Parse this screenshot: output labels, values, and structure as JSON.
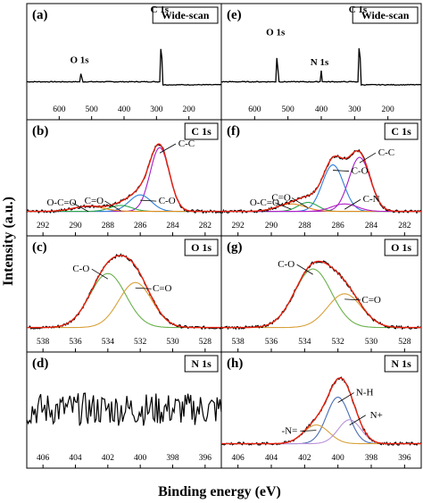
{
  "figure": {
    "ylabel": "Intensity (a.u.)",
    "xlabel": "Binding energy (eV)"
  },
  "colors": {
    "raw": "#000000",
    "envelope": "#e8220f",
    "c_cc": "#a31fc7",
    "c_co": "#2f7fdc",
    "c_oco": "#e08a1e",
    "c_ceqo": "#2aa84a",
    "c_cn": "#b31fc7",
    "o_co": "#6ab04c",
    "o_ceqo": "#d8a03a",
    "n_nh": "#4a6fb5",
    "n_neq": "#d8a03a",
    "n_nplus": "#b891d8"
  },
  "chart_data": [
    {
      "id": "a",
      "panel_label": "(a)",
      "title": "Wide-scan",
      "type": "line",
      "xlim": [
        700,
        100
      ],
      "xticks": [
        600,
        500,
        400,
        300,
        200
      ],
      "annotations": [
        {
          "text": "O 1s",
          "x": 532
        },
        {
          "text": "C 1s",
          "x": 285
        }
      ],
      "series": [
        {
          "kind": "raw",
          "peaks": [
            [
              532,
              0.18,
              3
            ],
            [
              285,
              0.85,
              3
            ]
          ],
          "baseline": 0.22,
          "step": [
            [
              290,
              0.08
            ]
          ]
        }
      ]
    },
    {
      "id": "b",
      "panel_label": "(b)",
      "title": "C 1s",
      "type": "line",
      "xlim": [
        293,
        281
      ],
      "xticks": [
        292,
        290,
        288,
        286,
        284,
        282
      ],
      "annotations": [
        {
          "text": "C-C"
        },
        {
          "text": "C-O"
        },
        {
          "text": "C=O"
        },
        {
          "text": "O-C=O"
        }
      ],
      "series": [
        {
          "component": "C-C",
          "center": 284.8,
          "height": 0.85,
          "fwhm": 1.4
        },
        {
          "component": "C-O",
          "center": 286.0,
          "height": 0.22,
          "fwhm": 1.6
        },
        {
          "component": "C=O",
          "center": 287.2,
          "height": 0.08,
          "fwhm": 1.6
        },
        {
          "component": "O-C=O",
          "center": 289.2,
          "height": 0.07,
          "fwhm": 2.2
        }
      ]
    },
    {
      "id": "c",
      "panel_label": "(c)",
      "title": "O 1s",
      "type": "line",
      "xlim": [
        539,
        527
      ],
      "xticks": [
        538,
        536,
        534,
        532,
        530,
        528
      ],
      "annotations": [
        {
          "text": "C-O"
        },
        {
          "text": "C=O"
        }
      ],
      "series": [
        {
          "component": "C-O",
          "center": 534.0,
          "height": 0.72,
          "fwhm": 2.6
        },
        {
          "component": "C=O",
          "center": 532.3,
          "height": 0.6,
          "fwhm": 2.4
        }
      ]
    },
    {
      "id": "d",
      "panel_label": "(d)",
      "title": "N 1s",
      "type": "line",
      "xlim": [
        407,
        395
      ],
      "xticks": [
        406,
        404,
        402,
        400,
        398,
        396
      ],
      "series": [
        {
          "kind": "noise",
          "level": 0.5,
          "amplitude": 0.22
        }
      ]
    },
    {
      "id": "e",
      "panel_label": "(e)",
      "title": "Wide-scan",
      "type": "line",
      "xlim": [
        700,
        100
      ],
      "xticks": [
        600,
        500,
        400,
        300,
        200
      ],
      "annotations": [
        {
          "text": "O 1s",
          "x": 532
        },
        {
          "text": "N 1s",
          "x": 400
        },
        {
          "text": "C 1s",
          "x": 285
        }
      ],
      "series": [
        {
          "kind": "raw",
          "peaks": [
            [
              532,
              0.55,
              3
            ],
            [
              400,
              0.15,
              3
            ],
            [
              285,
              0.85,
              3
            ]
          ],
          "baseline": 0.22
        }
      ]
    },
    {
      "id": "f",
      "panel_label": "(f)",
      "title": "C 1s",
      "type": "line",
      "xlim": [
        293,
        281
      ],
      "xticks": [
        292,
        290,
        288,
        286,
        284,
        282
      ],
      "annotations": [
        {
          "text": "C-C"
        },
        {
          "text": "C-O"
        },
        {
          "text": "C=O"
        },
        {
          "text": "O-C=O"
        },
        {
          "text": "C-N"
        }
      ],
      "series": [
        {
          "component": "C-C",
          "center": 284.7,
          "height": 0.72,
          "fwhm": 1.5
        },
        {
          "component": "C-O",
          "center": 286.3,
          "height": 0.62,
          "fwhm": 1.5
        },
        {
          "component": "C=O",
          "center": 287.8,
          "height": 0.12,
          "fwhm": 1.4
        },
        {
          "component": "O-C=O",
          "center": 288.8,
          "height": 0.1,
          "fwhm": 2.0
        },
        {
          "component": "C-N",
          "center": 285.6,
          "height": 0.1,
          "fwhm": 1.8
        }
      ]
    },
    {
      "id": "g",
      "panel_label": "(g)",
      "title": "O 1s",
      "type": "line",
      "xlim": [
        539,
        527
      ],
      "xticks": [
        538,
        536,
        534,
        532,
        530,
        528
      ],
      "annotations": [
        {
          "text": "C-O"
        },
        {
          "text": "C=O"
        }
      ],
      "series": [
        {
          "component": "C-O",
          "center": 533.5,
          "height": 0.78,
          "fwhm": 2.6
        },
        {
          "component": "C=O",
          "center": 531.6,
          "height": 0.45,
          "fwhm": 2.4
        }
      ]
    },
    {
      "id": "h",
      "panel_label": "(h)",
      "title": "N 1s",
      "type": "line",
      "xlim": [
        407,
        395
      ],
      "xticks": [
        406,
        404,
        402,
        400,
        398,
        396
      ],
      "annotations": [
        {
          "text": "N-H"
        },
        {
          "text": "-N="
        },
        {
          "text": "N+"
        }
      ],
      "series": [
        {
          "component": "N-H",
          "center": 400.0,
          "height": 0.62,
          "fwhm": 1.6
        },
        {
          "component": "-N=",
          "center": 401.3,
          "height": 0.25,
          "fwhm": 1.8
        },
        {
          "component": "N+",
          "center": 399.3,
          "height": 0.32,
          "fwhm": 1.6
        }
      ]
    }
  ]
}
